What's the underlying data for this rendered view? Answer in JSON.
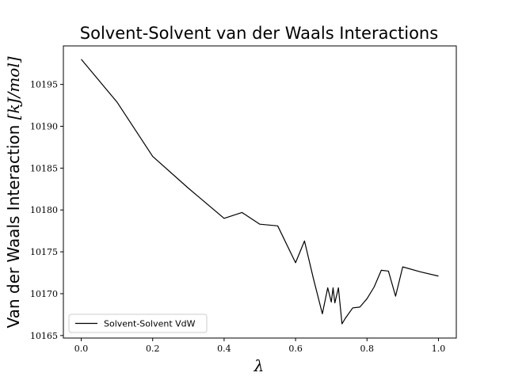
{
  "chart_data": {
    "type": "line",
    "title": "Solvent-Solvent van der Waals Interactions",
    "xlabel": "λ",
    "ylabel_text": "Van der Waals Interaction ",
    "ylabel_unit": "[kJ/mol]",
    "xlim": [
      -0.05,
      1.05
    ],
    "ylim": [
      10164.7,
      10199.6
    ],
    "xticks": [
      0.0,
      0.2,
      0.4,
      0.6,
      0.8,
      1.0
    ],
    "xtick_labels": [
      "0.0",
      "0.2",
      "0.4",
      "0.6",
      "0.8",
      "1.0"
    ],
    "yticks": [
      10165,
      10170,
      10175,
      10180,
      10185,
      10190,
      10195
    ],
    "ytick_labels": [
      "10165",
      "10170",
      "10175",
      "10180",
      "10185",
      "10190",
      "10195"
    ],
    "grid": false,
    "legend_position": "lower-left",
    "series": [
      {
        "name": "Solvent-Solvent VdW",
        "color": "#000000",
        "x": [
          0.0,
          0.1,
          0.2,
          0.3,
          0.4,
          0.45,
          0.5,
          0.55,
          0.6,
          0.625,
          0.65,
          0.675,
          0.69,
          0.7,
          0.705,
          0.71,
          0.72,
          0.73,
          0.74,
          0.76,
          0.78,
          0.8,
          0.82,
          0.84,
          0.86,
          0.88,
          0.9,
          0.95,
          1.0
        ],
        "y": [
          10198.0,
          10192.9,
          10186.4,
          10182.6,
          10179.0,
          10179.7,
          10178.3,
          10178.1,
          10173.7,
          10176.3,
          10171.8,
          10167.6,
          10170.7,
          10169.0,
          10170.7,
          10168.9,
          10170.7,
          10166.4,
          10167.1,
          10168.3,
          10168.4,
          10169.4,
          10170.8,
          10172.8,
          10172.7,
          10169.7,
          10173.2,
          10172.6,
          10172.1
        ]
      }
    ]
  }
}
